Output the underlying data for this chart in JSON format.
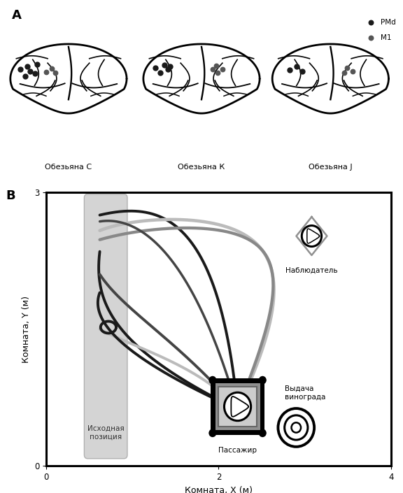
{
  "panel_A_label": "A",
  "panel_B_label": "B",
  "monkey_labels": [
    "Обезьяна С",
    "Обезьяна К",
    "Обезьяна J"
  ],
  "legend_pmd": "PMd",
  "legend_m1": "M1",
  "xlabel": "Комната, X (м)",
  "ylabel": "Комната, Y (м)",
  "xlim": [
    0,
    4
  ],
  "ylim": [
    0,
    3
  ],
  "xticks": [
    0,
    2,
    4
  ],
  "yticks": [
    0,
    3
  ],
  "start_zone_label": "Исходная\nпозиция",
  "observer_label": "Наблюдатель",
  "grape_label": "Выдача\nвинограда",
  "passenger_label": "Пассажир",
  "color_dark": "#1a1a1a",
  "color_meddark": "#444444",
  "color_med": "#888888",
  "color_light": "#bbbbbb",
  "color_lightgray": "#cccccc"
}
